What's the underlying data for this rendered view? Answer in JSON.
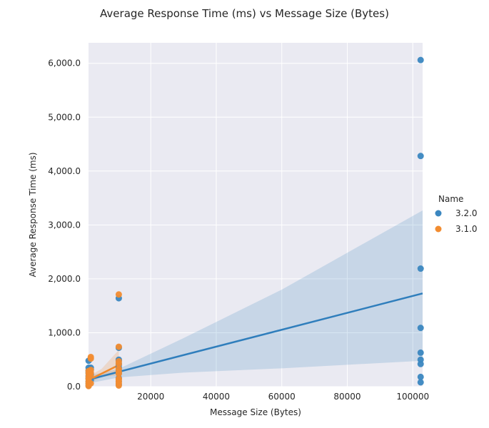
{
  "chart_data": {
    "type": "scatter",
    "title": "Average Response Time (ms) vs Message Size (Bytes)",
    "xlabel": "Message Size (Bytes)",
    "ylabel": "Average Response Time (ms)",
    "xlim": [
      1000,
      103000
    ],
    "ylim": [
      0,
      6380
    ],
    "x_ticks": [
      20000,
      40000,
      60000,
      80000,
      100000
    ],
    "x_tick_labels": [
      "20000",
      "40000",
      "60000",
      "80000",
      "100000"
    ],
    "y_ticks": [
      0,
      1000,
      2000,
      3000,
      4000,
      5000,
      6000
    ],
    "y_tick_labels": [
      "0.0",
      "1,000.0",
      "2,000.0",
      "3,000.0",
      "4,000.0",
      "5,000.0",
      "6,000.0"
    ],
    "grid": true,
    "legend": {
      "title": "Name",
      "placement": "center-right"
    },
    "series": [
      {
        "name": "3.2.0",
        "color": "#3b87c0",
        "line_color": "#2f7ebc",
        "points": [
          {
            "x": 1024,
            "y": 20
          },
          {
            "x": 1024,
            "y": 60
          },
          {
            "x": 1024,
            "y": 100
          },
          {
            "x": 1024,
            "y": 150
          },
          {
            "x": 1024,
            "y": 200
          },
          {
            "x": 1024,
            "y": 260
          },
          {
            "x": 1024,
            "y": 300
          },
          {
            "x": 1024,
            "y": 350
          },
          {
            "x": 1024,
            "y": 480
          },
          {
            "x": 1700,
            "y": 120
          },
          {
            "x": 1700,
            "y": 230
          },
          {
            "x": 1700,
            "y": 320
          },
          {
            "x": 1700,
            "y": 350
          },
          {
            "x": 10240,
            "y": 40
          },
          {
            "x": 10240,
            "y": 100
          },
          {
            "x": 10240,
            "y": 160
          },
          {
            "x": 10240,
            "y": 250
          },
          {
            "x": 10240,
            "y": 300
          },
          {
            "x": 10240,
            "y": 350
          },
          {
            "x": 10240,
            "y": 400
          },
          {
            "x": 10240,
            "y": 430
          },
          {
            "x": 10240,
            "y": 480
          },
          {
            "x": 10240,
            "y": 500
          },
          {
            "x": 10240,
            "y": 720
          },
          {
            "x": 10240,
            "y": 1640
          },
          {
            "x": 102400,
            "y": 80
          },
          {
            "x": 102400,
            "y": 180
          },
          {
            "x": 102400,
            "y": 420
          },
          {
            "x": 102400,
            "y": 500
          },
          {
            "x": 102400,
            "y": 630
          },
          {
            "x": 102400,
            "y": 1090
          },
          {
            "x": 102400,
            "y": 2190
          },
          {
            "x": 102400,
            "y": 4280
          },
          {
            "x": 102400,
            "y": 6060
          }
        ],
        "fit_line": [
          {
            "x": 1000,
            "y": 130
          },
          {
            "x": 103000,
            "y": 1730
          }
        ],
        "ci_band": [
          {
            "x": 1000,
            "lo": 60,
            "hi": 200
          },
          {
            "x": 10240,
            "lo": 170,
            "hi": 330
          },
          {
            "x": 30000,
            "lo": 260,
            "hi": 900
          },
          {
            "x": 60000,
            "lo": 340,
            "hi": 1800
          },
          {
            "x": 103000,
            "lo": 480,
            "hi": 3270
          }
        ]
      },
      {
        "name": "3.1.0",
        "color": "#f28c30",
        "line_color": "#f08a2b",
        "points": [
          {
            "x": 1024,
            "y": 10
          },
          {
            "x": 1024,
            "y": 50
          },
          {
            "x": 1024,
            "y": 90
          },
          {
            "x": 1024,
            "y": 140
          },
          {
            "x": 1024,
            "y": 180
          },
          {
            "x": 1024,
            "y": 240
          },
          {
            "x": 1024,
            "y": 290
          },
          {
            "x": 1700,
            "y": 60
          },
          {
            "x": 1700,
            "y": 200
          },
          {
            "x": 1700,
            "y": 260
          },
          {
            "x": 1700,
            "y": 310
          },
          {
            "x": 1700,
            "y": 520
          },
          {
            "x": 1700,
            "y": 550
          },
          {
            "x": 10240,
            "y": 20
          },
          {
            "x": 10240,
            "y": 60
          },
          {
            "x": 10240,
            "y": 90
          },
          {
            "x": 10240,
            "y": 130
          },
          {
            "x": 10240,
            "y": 150
          },
          {
            "x": 10240,
            "y": 240
          },
          {
            "x": 10240,
            "y": 270
          },
          {
            "x": 10240,
            "y": 330
          },
          {
            "x": 10240,
            "y": 420
          },
          {
            "x": 10240,
            "y": 470
          },
          {
            "x": 10240,
            "y": 740
          },
          {
            "x": 10240,
            "y": 1710
          }
        ],
        "fit_line": [
          {
            "x": 1000,
            "y": 120
          },
          {
            "x": 10240,
            "y": 400
          }
        ],
        "ci_band": [
          {
            "x": 1000,
            "lo": 60,
            "hi": 190
          },
          {
            "x": 5000,
            "lo": 180,
            "hi": 330
          },
          {
            "x": 10240,
            "lo": 210,
            "hi": 680
          }
        ]
      }
    ]
  }
}
